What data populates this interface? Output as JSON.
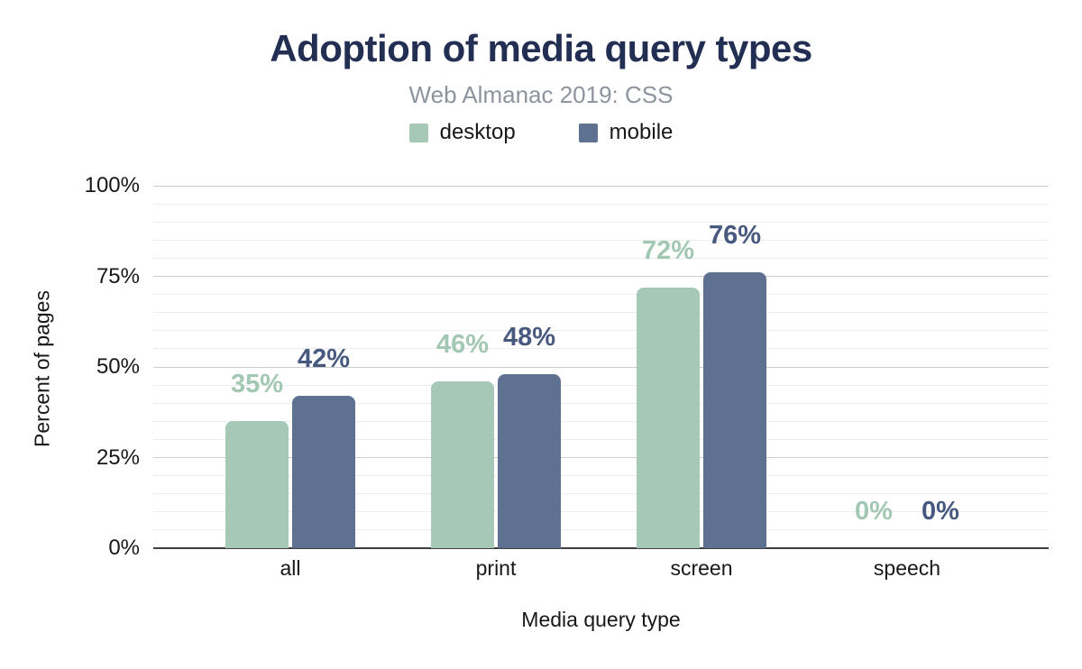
{
  "chart_data": {
    "type": "bar",
    "title": "Adoption of media query types",
    "subtitle": "Web Almanac 2019: CSS",
    "categories": [
      "all",
      "print",
      "screen",
      "speech"
    ],
    "series": [
      {
        "name": "desktop",
        "color": "#a5c9b6",
        "label_color": "#a2c7b2",
        "values": [
          35,
          46,
          72,
          0
        ],
        "labels": [
          "35%",
          "46%",
          "72%",
          "0%"
        ]
      },
      {
        "name": "mobile",
        "color": "#5e7190",
        "label_color": "#48597f",
        "values": [
          42,
          48,
          76,
          0
        ],
        "labels": [
          "42%",
          "48%",
          "76%",
          "0%"
        ]
      }
    ],
    "xlabel": "Media query type",
    "ylabel": "Percent of pages",
    "ylim": [
      0,
      100
    ],
    "yticks": [
      0,
      25,
      50,
      75,
      100
    ],
    "ytick_labels": [
      "0%",
      "25%",
      "50%",
      "75%",
      "100%"
    ],
    "minor_grid_step": 5,
    "major_grid_step": 25,
    "grid": true,
    "legend_position": "top"
  },
  "colors": {
    "title": "#222e52",
    "subtitle": "#8d949d",
    "axis_text": "#17181a",
    "minor_gridline": "#ecedee",
    "major_gridline": "#c9cdd0",
    "axis_line": "#3c4044",
    "background": "#ffffff"
  }
}
